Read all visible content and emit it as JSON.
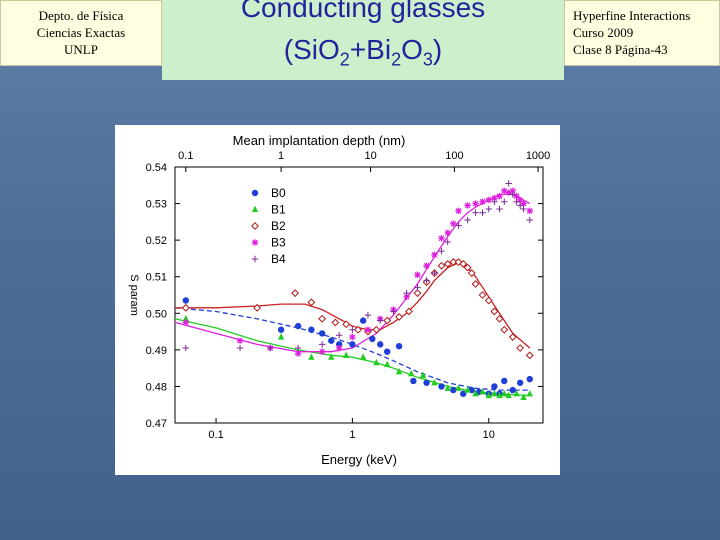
{
  "header": {
    "left_lines": [
      "Depto. de Física",
      "Ciencias Exactas",
      "UNLP"
    ],
    "title_line1": "Conducting glasses",
    "title_formula_parts": [
      "(SiO",
      "2",
      "+Bi",
      "2",
      "O",
      "3",
      ")"
    ],
    "right_lines": [
      "Hyperfine Interactions",
      "Curso 2009",
      "Clase 8  Página-43"
    ]
  },
  "chart_data": {
    "type": "scatter",
    "title": "",
    "xlabel": "Energy (keV)",
    "x2label": "Mean implantation depth (nm)",
    "ylabel": "S param",
    "x_scale": "log",
    "xlim": [
      0.05,
      25
    ],
    "ylim": [
      0.47,
      0.54
    ],
    "x_ticks": [
      0.1,
      1,
      10
    ],
    "x_tick_labels": [
      "0.1",
      "1",
      "10"
    ],
    "x2_ticks": [
      0.06,
      0.3,
      1.36,
      5.6,
      23
    ],
    "x2_tick_labels": [
      "0.1",
      "1",
      "10",
      "100",
      "1000"
    ],
    "y_ticks": [
      0.47,
      0.48,
      0.49,
      0.5,
      0.51,
      0.52,
      0.53,
      0.54
    ],
    "y_tick_labels": [
      "0.47",
      "0.48",
      "0.49",
      "0.50",
      "0.51",
      "0.52",
      "0.53",
      "0.54"
    ],
    "grid": false,
    "legend_position": "top-left",
    "series": [
      {
        "name": "B0",
        "marker": "circle",
        "color": "#1f3fd8",
        "x": [
          0.06,
          0.3,
          0.4,
          0.5,
          0.6,
          0.7,
          0.8,
          1.0,
          1.2,
          1.4,
          1.6,
          1.8,
          2.2,
          2.8,
          3.5,
          4.5,
          5.5,
          6.5,
          7.5,
          8.5,
          10,
          11,
          12,
          13,
          15,
          17,
          20
        ],
        "y": [
          0.5035,
          0.4955,
          0.4965,
          0.4955,
          0.4945,
          0.4925,
          0.4915,
          0.4915,
          0.498,
          0.493,
          0.4915,
          0.4895,
          0.491,
          0.4815,
          0.481,
          0.48,
          0.479,
          0.478,
          0.479,
          0.4785,
          0.478,
          0.48,
          0.478,
          0.4815,
          0.479,
          0.481,
          0.482
        ]
      },
      {
        "name": "B1",
        "marker": "triangle",
        "color": "#22cc22",
        "x": [
          0.06,
          0.3,
          0.5,
          0.7,
          0.9,
          1.2,
          1.5,
          1.8,
          2.2,
          2.7,
          3.3,
          4.0,
          5.0,
          6.0,
          7.0,
          8.0,
          9.0,
          10,
          11,
          12,
          13,
          14,
          16,
          18,
          20
        ],
        "y": [
          0.4985,
          0.4935,
          0.488,
          0.488,
          0.4885,
          0.488,
          0.4865,
          0.486,
          0.484,
          0.4835,
          0.483,
          0.481,
          0.4795,
          0.4795,
          0.479,
          0.478,
          0.4785,
          0.4775,
          0.478,
          0.4775,
          0.478,
          0.4775,
          0.478,
          0.477,
          0.478
        ]
      },
      {
        "name": "B2",
        "marker": "diamond",
        "color": "#b01818",
        "x": [
          0.06,
          0.2,
          0.38,
          0.5,
          0.6,
          0.75,
          0.9,
          1.1,
          1.3,
          1.5,
          1.8,
          2.2,
          2.6,
          3.0,
          3.5,
          4.0,
          4.5,
          5.0,
          5.5,
          6.0,
          6.5,
          7.0,
          7.5,
          8.0,
          9.0,
          10,
          11,
          12,
          13,
          15,
          17,
          20
        ],
        "y": [
          0.5015,
          0.5015,
          0.5055,
          0.503,
          0.4985,
          0.4975,
          0.497,
          0.4955,
          0.495,
          0.4955,
          0.498,
          0.499,
          0.5005,
          0.5055,
          0.5085,
          0.511,
          0.513,
          0.5135,
          0.514,
          0.514,
          0.5135,
          0.5125,
          0.511,
          0.508,
          0.505,
          0.5035,
          0.5005,
          0.4985,
          0.4955,
          0.4935,
          0.4905,
          0.4885
        ]
      },
      {
        "name": "B3",
        "marker": "asterisk",
        "color": "#e020e0",
        "x": [
          0.06,
          0.15,
          0.25,
          0.4,
          0.6,
          0.8,
          1.0,
          1.3,
          1.6,
          2.0,
          2.5,
          3.0,
          3.5,
          4.0,
          4.5,
          5.0,
          5.5,
          6.0,
          7.0,
          8.0,
          9.0,
          10,
          11,
          12,
          13,
          14,
          15,
          16,
          17,
          18,
          20
        ],
        "y": [
          0.4975,
          0.4925,
          0.4905,
          0.489,
          0.4895,
          0.4905,
          0.4935,
          0.4955,
          0.4985,
          0.501,
          0.5045,
          0.5105,
          0.513,
          0.516,
          0.5205,
          0.522,
          0.5245,
          0.528,
          0.5295,
          0.53,
          0.5305,
          0.531,
          0.5315,
          0.532,
          0.5335,
          0.533,
          0.5335,
          0.532,
          0.531,
          0.53,
          0.528
        ]
      },
      {
        "name": "B4",
        "marker": "plus",
        "color": "#7a2a9a",
        "x": [
          0.06,
          0.15,
          0.25,
          0.4,
          0.6,
          0.8,
          1.0,
          1.3,
          1.6,
          2.0,
          2.5,
          3.0,
          3.5,
          4.0,
          4.5,
          5.0,
          6.0,
          7.0,
          8.0,
          9.0,
          10,
          11,
          12,
          13,
          14,
          15,
          16,
          17,
          18,
          20
        ],
        "y": [
          0.4905,
          0.4905,
          0.4905,
          0.4905,
          0.4915,
          0.494,
          0.4955,
          0.4995,
          0.498,
          0.5005,
          0.5055,
          0.507,
          0.509,
          0.511,
          0.517,
          0.5195,
          0.524,
          0.5255,
          0.5275,
          0.5275,
          0.5285,
          0.5305,
          0.5285,
          0.5305,
          0.5355,
          0.5325,
          0.5305,
          0.5295,
          0.5285,
          0.5255
        ]
      }
    ],
    "fit_curves": [
      {
        "series": "B0",
        "style": "dashed",
        "color": "#1f3fd8",
        "x": [
          0.05,
          0.1,
          0.2,
          0.4,
          0.7,
          1.0,
          1.5,
          2.0,
          3.0,
          5.0,
          8.0,
          12,
          20
        ],
        "y": [
          0.5015,
          0.5005,
          0.4985,
          0.496,
          0.4935,
          0.4915,
          0.489,
          0.487,
          0.484,
          0.481,
          0.4795,
          0.479,
          0.479
        ]
      },
      {
        "series": "B1",
        "style": "solid",
        "color": "#22cc22",
        "x": [
          0.05,
          0.1,
          0.2,
          0.4,
          0.7,
          1.0,
          1.5,
          2.0,
          3.0,
          5.0,
          8.0,
          12,
          20
        ],
        "y": [
          0.4985,
          0.496,
          0.4925,
          0.49,
          0.4885,
          0.488,
          0.4865,
          0.485,
          0.4825,
          0.48,
          0.4785,
          0.478,
          0.4775
        ]
      },
      {
        "series": "B2",
        "style": "solid",
        "color": "#cc2020",
        "x": [
          0.05,
          0.1,
          0.2,
          0.3,
          0.45,
          0.6,
          0.8,
          1.0,
          1.3,
          1.6,
          2.0,
          2.5,
          3.0,
          3.5,
          4.0,
          5.0,
          6.0,
          7.0,
          8.0,
          10,
          12,
          15,
          20
        ],
        "y": [
          0.5015,
          0.5015,
          0.502,
          0.5025,
          0.5025,
          0.501,
          0.4985,
          0.4965,
          0.4955,
          0.4955,
          0.4975,
          0.5,
          0.503,
          0.506,
          0.509,
          0.5125,
          0.5138,
          0.5125,
          0.51,
          0.5045,
          0.5,
          0.4945,
          0.4905
        ]
      },
      {
        "series": "B3",
        "style": "solid",
        "color": "#e020e0",
        "x": [
          0.05,
          0.1,
          0.2,
          0.4,
          0.7,
          1.0,
          1.5,
          2.0,
          3.0,
          4.0,
          5.0,
          6.0,
          7.0,
          8.0,
          10,
          12,
          15,
          20
        ],
        "y": [
          0.4975,
          0.4945,
          0.4915,
          0.4895,
          0.4895,
          0.4905,
          0.4945,
          0.4995,
          0.508,
          0.5155,
          0.521,
          0.525,
          0.5275,
          0.529,
          0.531,
          0.5325,
          0.5325,
          0.53
        ]
      }
    ]
  }
}
